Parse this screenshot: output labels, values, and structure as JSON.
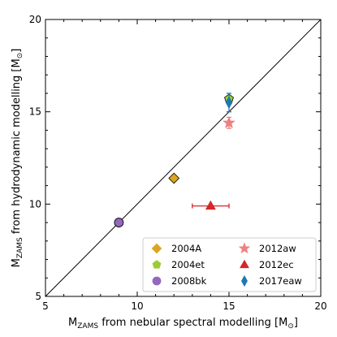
{
  "chart_data": {
    "type": "scatter",
    "xlim": [
      5,
      20
    ],
    "ylim": [
      5,
      20
    ],
    "xticks": [
      5,
      10,
      15,
      20
    ],
    "yticks": [
      5,
      10,
      15,
      20
    ],
    "xticks_labels": [
      "5",
      "10",
      "15",
      "20"
    ],
    "yticks_labels": [
      "5",
      "10",
      "15",
      "20"
    ],
    "xlabel": {
      "pre": "M",
      "sub": "ZAMS",
      "mid": " from nebular spectral modelling [M",
      "sun": "⊙",
      "post": "]"
    },
    "ylabel": {
      "pre": "M",
      "sub": "ZAMS",
      "mid": " from hydrodynamic modelling [M",
      "sun": "⊙",
      "post": "]"
    },
    "reference_line": {
      "x": [
        5,
        20
      ],
      "y": [
        5,
        20
      ],
      "color": "#000000"
    },
    "grid": false,
    "legend_placement": "lower-right",
    "series": [
      {
        "name": "2004A",
        "marker": "diamond",
        "color": "#dba520",
        "x": 12,
        "y": 11.4,
        "xerr": null,
        "yerr": null,
        "edge": true
      },
      {
        "name": "2004et",
        "marker": "pentagon",
        "color": "#9acd32",
        "x": 15,
        "y": 15.7,
        "xerr": null,
        "yerr": null,
        "edge": true
      },
      {
        "name": "2008bk",
        "marker": "circle",
        "color": "#9467bd",
        "x": 9,
        "y": 9.0,
        "xerr": null,
        "yerr": null,
        "edge": true
      },
      {
        "name": "2012aw",
        "marker": "star",
        "color": "#f08080",
        "x": 15,
        "y": 14.4,
        "xerr": null,
        "yerr": 0.3,
        "edge": false
      },
      {
        "name": "2012ec",
        "marker": "triangle",
        "color": "#d62728",
        "x": 14,
        "y": 9.9,
        "xerr": 1.0,
        "yerr": null,
        "edge": false
      },
      {
        "name": "2017eaw",
        "marker": "thin-diamond",
        "color": "#1f77b4",
        "x": 15,
        "y": 15.5,
        "xerr": null,
        "yerr": 0.5,
        "edge": false
      }
    ]
  }
}
